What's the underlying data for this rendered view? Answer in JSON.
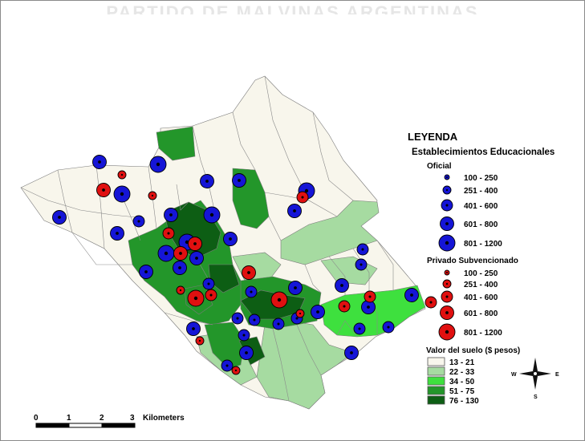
{
  "map_title": "PARTIDO DE MALVINAS ARGENTINAS",
  "legend": {
    "title": "LEYENDA",
    "subtitle": "Establecimientos Educacionales",
    "oficial": {
      "title": "Oficial",
      "color": "#1515d6",
      "classes": [
        "100 - 250",
        "251 - 400",
        "401 - 600",
        "601 - 800",
        "801 - 1200"
      ]
    },
    "privado": {
      "title": "Privado Subvencionado",
      "color": "#e01010",
      "classes": [
        "100 - 250",
        "251 - 400",
        "401 - 600",
        "601 - 800",
        "801 - 1200"
      ]
    },
    "suelo": {
      "title": "Valor del suelo ($ pesos)",
      "classes": [
        {
          "label": "13 - 21",
          "color": "#f8f6ec"
        },
        {
          "label": "22 - 33",
          "color": "#a6dba1"
        },
        {
          "label": "34 - 50",
          "color": "#3ee03e"
        },
        {
          "label": "51 - 75",
          "color": "#23962a"
        },
        {
          "label": "76 - 130",
          "color": "#0d5e14"
        }
      ]
    }
  },
  "compass": {
    "w": "W",
    "e": "E",
    "s": "S"
  },
  "scale_bar": {
    "ticks": [
      "0",
      "1",
      "2",
      "3"
    ],
    "unit": "Kilometers"
  }
}
